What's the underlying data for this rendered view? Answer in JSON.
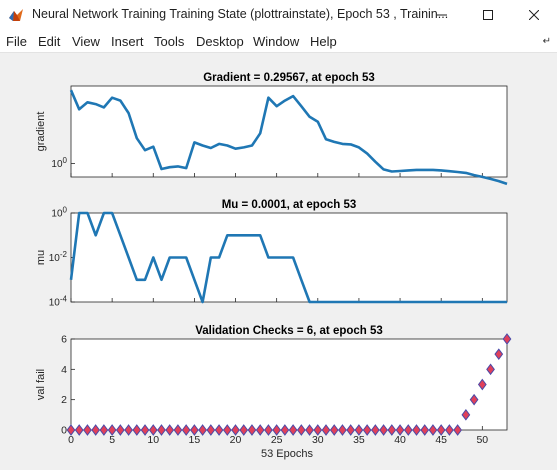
{
  "window": {
    "title": "Neural Network Training Training State (plottrainstate), Epoch 53 , Trainin..."
  },
  "menu": [
    "File",
    "Edit",
    "View",
    "Insert",
    "Tools",
    "Desktop",
    "Window",
    "Help"
  ],
  "colors": {
    "line": "#1f77b4",
    "marker_fill": "#e0405a",
    "marker_edge": "#4a4aa8",
    "axes_bg": "#ffffff",
    "figure_bg": "#f0f0f0"
  },
  "chart_data": [
    {
      "type": "line",
      "title": "Gradient = 0.29567, at epoch 53",
      "ylabel": "gradient",
      "yscale": "log",
      "xlim": [
        0,
        53
      ],
      "yticks": [
        "10^0"
      ],
      "x": [
        0,
        1,
        2,
        3,
        4,
        5,
        6,
        7,
        8,
        9,
        10,
        11,
        12,
        13,
        14,
        15,
        16,
        17,
        18,
        19,
        20,
        21,
        22,
        23,
        24,
        25,
        26,
        27,
        28,
        29,
        30,
        31,
        32,
        33,
        34,
        35,
        36,
        37,
        38,
        39,
        40,
        41,
        42,
        43,
        44,
        45,
        46,
        47,
        48,
        49,
        50,
        51,
        52,
        53
      ],
      "values": [
        78,
        25,
        38,
        34,
        28,
        50,
        42,
        20,
        4.5,
        2.2,
        2.7,
        0.72,
        0.8,
        0.84,
        0.76,
        3.5,
        2.9,
        2.5,
        3.2,
        2.9,
        2.4,
        2.6,
        2.9,
        6,
        50,
        30,
        42,
        55,
        30,
        16,
        12,
        4.2,
        3.6,
        3.2,
        3.1,
        2.6,
        1.8,
        1.1,
        0.7,
        0.62,
        0.64,
        0.66,
        0.68,
        0.68,
        0.68,
        0.66,
        0.63,
        0.6,
        0.57,
        0.5,
        0.45,
        0.4,
        0.35,
        0.29567
      ]
    },
    {
      "type": "line",
      "title": "Mu = 0.0001, at epoch 53",
      "ylabel": "mu",
      "yscale": "log",
      "xlim": [
        0,
        53
      ],
      "yticks": [
        "10^0",
        "10^-2",
        "10^-4"
      ],
      "x": [
        0,
        1,
        2,
        3,
        4,
        5,
        6,
        7,
        8,
        9,
        10,
        11,
        12,
        13,
        14,
        15,
        16,
        17,
        18,
        19,
        20,
        21,
        22,
        23,
        24,
        25,
        26,
        27,
        28,
        29,
        30,
        31,
        32,
        33,
        34,
        35,
        36,
        37,
        38,
        39,
        40,
        41,
        42,
        43,
        44,
        45,
        46,
        47,
        48,
        49,
        50,
        51,
        52,
        53
      ],
      "values": [
        0.001,
        1,
        1,
        0.1,
        1,
        1,
        0.1,
        0.01,
        0.001,
        0.001,
        0.01,
        0.001,
        0.01,
        0.01,
        0.01,
        0.001,
        0.0001,
        0.01,
        0.01,
        0.1,
        0.1,
        0.1,
        0.1,
        0.1,
        0.01,
        0.01,
        0.01,
        0.01,
        0.001,
        0.0001,
        0.0001,
        0.0001,
        0.0001,
        0.0001,
        0.0001,
        0.0001,
        0.0001,
        0.0001,
        0.0001,
        0.0001,
        0.0001,
        0.0001,
        0.0001,
        0.0001,
        0.0001,
        0.0001,
        0.0001,
        0.0001,
        0.0001,
        0.0001,
        0.0001,
        0.0001,
        0.0001,
        0.0001
      ]
    },
    {
      "type": "scatter",
      "title": "Validation Checks = 6, at epoch 53",
      "ylabel": "val fail",
      "xlabel": "53 Epochs",
      "xlim": [
        0,
        53
      ],
      "ylim": [
        0,
        6
      ],
      "xticks": [
        "0",
        "5",
        "10",
        "15",
        "20",
        "25",
        "30",
        "35",
        "40",
        "45",
        "50"
      ],
      "yticks": [
        "0",
        "2",
        "4",
        "6"
      ],
      "x": [
        0,
        1,
        2,
        3,
        4,
        5,
        6,
        7,
        8,
        9,
        10,
        11,
        12,
        13,
        14,
        15,
        16,
        17,
        18,
        19,
        20,
        21,
        22,
        23,
        24,
        25,
        26,
        27,
        28,
        29,
        30,
        31,
        32,
        33,
        34,
        35,
        36,
        37,
        38,
        39,
        40,
        41,
        42,
        43,
        44,
        45,
        46,
        47,
        48,
        49,
        50,
        51,
        52,
        53
      ],
      "values": [
        0,
        0,
        0,
        0,
        0,
        0,
        0,
        0,
        0,
        0,
        0,
        0,
        0,
        0,
        0,
        0,
        0,
        0,
        0,
        0,
        0,
        0,
        0,
        0,
        0,
        0,
        0,
        0,
        0,
        0,
        0,
        0,
        0,
        0,
        0,
        0,
        0,
        0,
        0,
        0,
        0,
        0,
        0,
        0,
        0,
        0,
        0,
        0,
        1,
        2,
        3,
        4,
        5,
        6
      ]
    }
  ]
}
